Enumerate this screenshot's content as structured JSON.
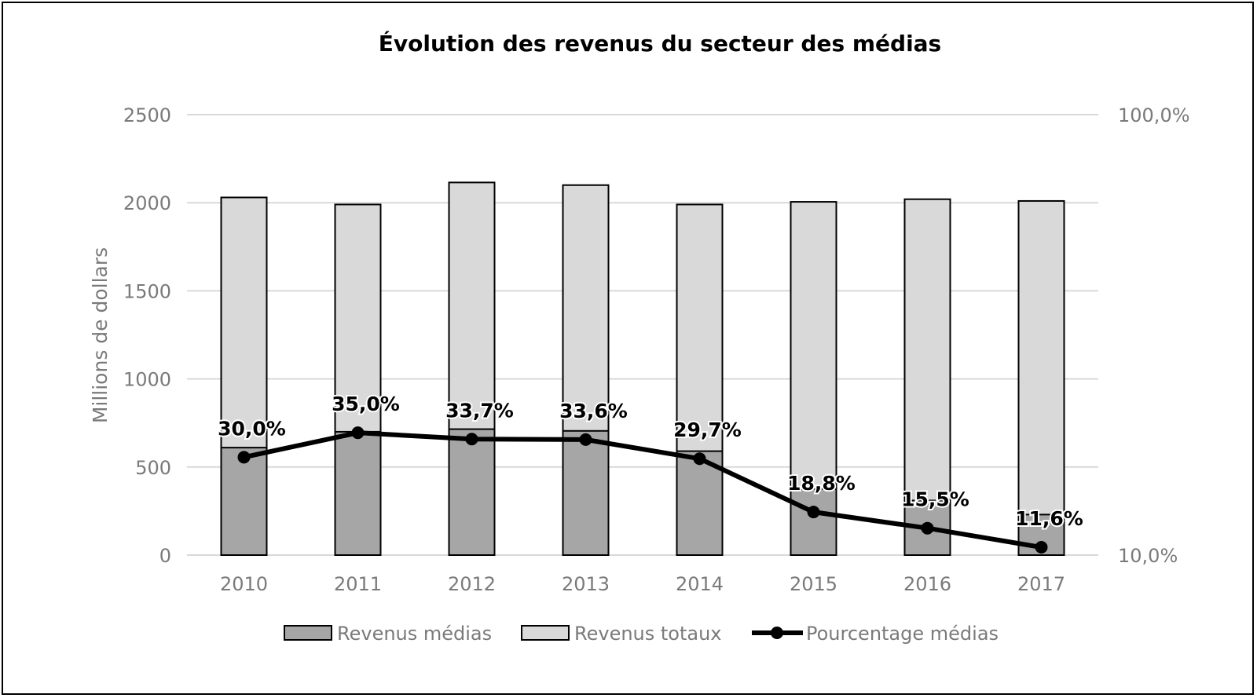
{
  "chart_data": {
    "type": "bar",
    "title": "Évolution des revenus du secteur des médias",
    "ylabel": "Millions de dollars",
    "categories": [
      "2010",
      "2011",
      "2012",
      "2013",
      "2014",
      "2015",
      "2016",
      "2017"
    ],
    "ylim": [
      0,
      2500
    ],
    "yticks": [
      "0",
      "500",
      "1000",
      "1500",
      "2000",
      "2500"
    ],
    "y2lim": [
      0.1,
      1.0
    ],
    "y2ticks": [
      "10,0%",
      "100,0%"
    ],
    "grid": true,
    "legend_position": "bottom",
    "series": [
      {
        "name": "Revenus médias",
        "type": "bar",
        "color": "#a6a6a6",
        "values": [
          610,
          700,
          715,
          705,
          590,
          375,
          310,
          230
        ]
      },
      {
        "name": "Revenus totaux",
        "type": "bar",
        "color": "#d9d9d9",
        "values": [
          2030,
          1990,
          2115,
          2100,
          1990,
          2005,
          2020,
          2010
        ]
      },
      {
        "name": "Pourcentage médias",
        "type": "line",
        "axis": "right",
        "color": "#000000",
        "values": [
          0.3,
          0.35,
          0.337,
          0.336,
          0.297,
          0.188,
          0.155,
          0.116
        ],
        "labels": [
          "30,0%",
          "35,0%",
          "33,7%",
          "33,6%",
          "29,7%",
          "18,8%",
          "15,5%",
          "11,6%"
        ]
      }
    ]
  }
}
